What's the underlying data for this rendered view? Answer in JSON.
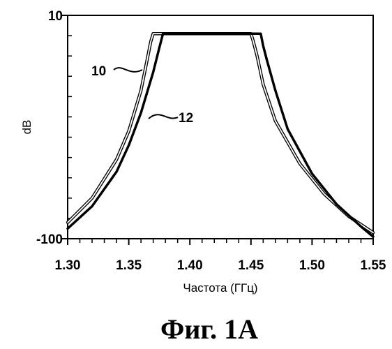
{
  "chart_data": {
    "type": "line",
    "xlabel": "Частота (ГГц)",
    "ylabel": "dB",
    "xlim": [
      1.3,
      1.55
    ],
    "ylim": [
      -100,
      10
    ],
    "x_tick_labels": [
      "1.30",
      "1.35",
      "1.40",
      "1.45",
      "1.50",
      "1.55"
    ],
    "y_tick_labels": [
      "10",
      "-100"
    ],
    "grid": false,
    "series": [
      {
        "name": "10",
        "x": [
          1.3,
          1.32,
          1.34,
          1.35,
          1.36,
          1.365,
          1.368,
          1.37,
          1.45,
          1.452,
          1.455,
          1.46,
          1.47,
          1.49,
          1.51,
          1.53,
          1.55
        ],
        "y": [
          -92,
          -80,
          -61,
          -47,
          -27,
          -12,
          -3,
          1,
          1,
          -3,
          -10,
          -24,
          -42,
          -63,
          -78,
          -89,
          -97
        ]
      },
      {
        "name": "12",
        "x": [
          1.3,
          1.32,
          1.34,
          1.35,
          1.36,
          1.37,
          1.375,
          1.378,
          1.458,
          1.46,
          1.463,
          1.47,
          1.48,
          1.5,
          1.52,
          1.54,
          1.55
        ],
        "y": [
          -95,
          -84,
          -67,
          -54,
          -38,
          -18,
          -6,
          1,
          1,
          -5,
          -12,
          -27,
          -46,
          -68,
          -83,
          -94,
          -99
        ]
      }
    ]
  },
  "figure": {
    "caption": "Фиг. 1A"
  }
}
